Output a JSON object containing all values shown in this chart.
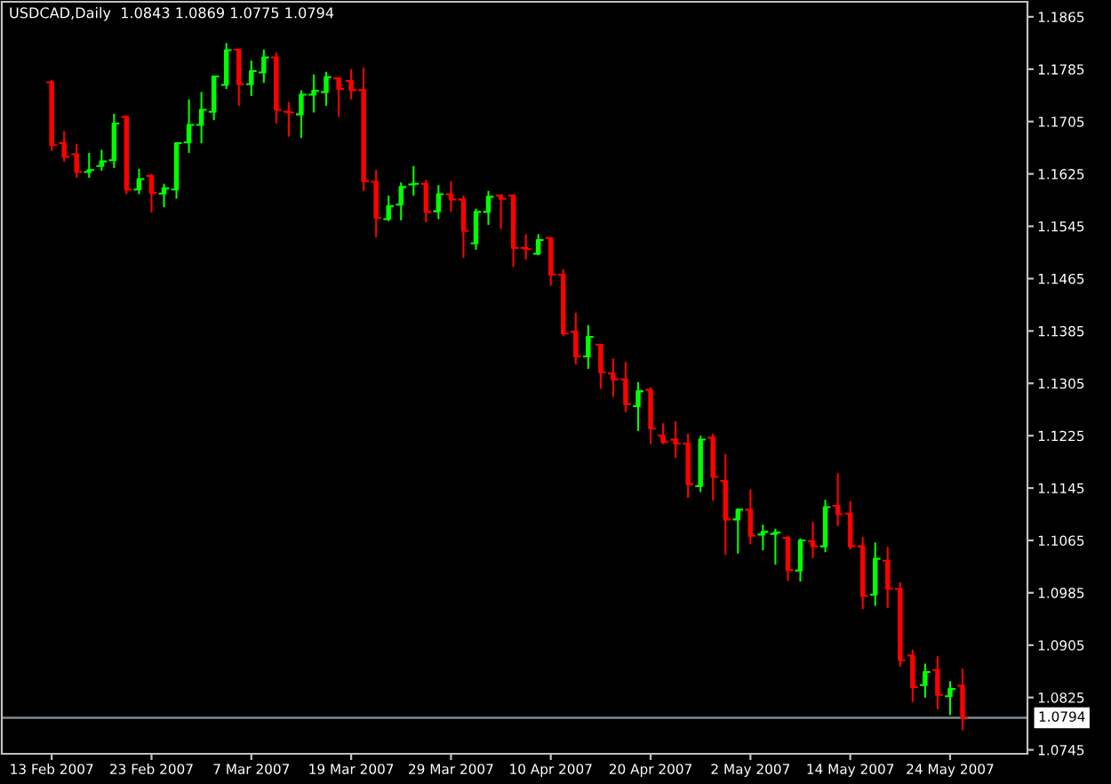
{
  "chart_data": {
    "type": "candlestick",
    "title": "USDCAD,Daily  1.0843 1.0869 1.0775 1.0794",
    "categories": [
      "13 Feb 2007",
      null,
      null,
      null,
      null,
      null,
      null,
      null,
      "23 Feb 2007",
      null,
      null,
      null,
      null,
      null,
      null,
      null,
      "7 Mar 2007",
      null,
      null,
      null,
      null,
      null,
      null,
      null,
      "19 Mar 2007",
      null,
      null,
      null,
      null,
      null,
      null,
      null,
      "29 Mar 2007",
      null,
      null,
      null,
      null,
      null,
      null,
      null,
      "10 Apr 2007",
      null,
      null,
      null,
      null,
      null,
      null,
      null,
      "20 Apr 2007",
      null,
      null,
      null,
      null,
      null,
      null,
      null,
      "2 May 2007",
      null,
      null,
      null,
      null,
      null,
      null,
      null,
      "14 May 2007",
      null,
      null,
      null,
      null,
      null,
      null,
      null,
      "24 May 2007",
      null
    ],
    "ohlc": [
      [
        1.1765,
        1.1768,
        1.166,
        1.1669
      ],
      [
        1.1672,
        1.169,
        1.1644,
        1.1651
      ],
      [
        1.1655,
        1.1671,
        1.1619,
        1.1628
      ],
      [
        1.1628,
        1.1657,
        1.1619,
        1.1631
      ],
      [
        1.1637,
        1.1662,
        1.163,
        1.1644
      ],
      [
        1.1646,
        1.1717,
        1.1634,
        1.1702
      ],
      [
        1.1712,
        1.1714,
        1.1594,
        1.1601
      ],
      [
        1.1601,
        1.1633,
        1.1594,
        1.1617
      ],
      [
        1.1622,
        1.1625,
        1.1566,
        1.1596
      ],
      [
        1.1595,
        1.161,
        1.1574,
        1.1603
      ],
      [
        1.1601,
        1.1673,
        1.1587,
        1.1672
      ],
      [
        1.1673,
        1.1739,
        1.1657,
        1.17
      ],
      [
        1.17,
        1.175,
        1.1672,
        1.1723
      ],
      [
        1.172,
        1.1775,
        1.1707,
        1.1774
      ],
      [
        1.1761,
        1.1825,
        1.1755,
        1.1814
      ],
      [
        1.1815,
        1.1816,
        1.1729,
        1.1762
      ],
      [
        1.1762,
        1.1798,
        1.1744,
        1.1782
      ],
      [
        1.178,
        1.1815,
        1.1764,
        1.1803
      ],
      [
        1.1803,
        1.1811,
        1.1702,
        1.1723
      ],
      [
        1.172,
        1.1735,
        1.1682,
        1.1719
      ],
      [
        1.1716,
        1.1753,
        1.168,
        1.1746
      ],
      [
        1.1746,
        1.1777,
        1.1719,
        1.1752
      ],
      [
        1.175,
        1.1781,
        1.1729,
        1.1773
      ],
      [
        1.1771,
        1.1771,
        1.1712,
        1.1755
      ],
      [
        1.1767,
        1.1785,
        1.1739,
        1.1753
      ],
      [
        1.1753,
        1.1788,
        1.1599,
        1.1614
      ],
      [
        1.1613,
        1.1631,
        1.1528,
        1.1558
      ],
      [
        1.1556,
        1.1592,
        1.1553,
        1.1576
      ],
      [
        1.1578,
        1.1612,
        1.1554,
        1.1605
      ],
      [
        1.1609,
        1.1637,
        1.1592,
        1.161
      ],
      [
        1.161,
        1.1616,
        1.1551,
        1.1567
      ],
      [
        1.1568,
        1.1608,
        1.1556,
        1.1594
      ],
      [
        1.1594,
        1.1614,
        1.1567,
        1.1586
      ],
      [
        1.1586,
        1.1592,
        1.1497,
        1.1538
      ],
      [
        1.1519,
        1.1572,
        1.1509,
        1.1567
      ],
      [
        1.1567,
        1.1599,
        1.1547,
        1.159
      ],
      [
        1.1592,
        1.1594,
        1.1541,
        1.1587
      ],
      [
        1.1592,
        1.1594,
        1.1483,
        1.1512
      ],
      [
        1.1512,
        1.1533,
        1.1494,
        1.151
      ],
      [
        1.1503,
        1.1533,
        1.1501,
        1.1524
      ],
      [
        1.1527,
        1.1528,
        1.1454,
        1.1471
      ],
      [
        1.1471,
        1.1479,
        1.1377,
        1.1381
      ],
      [
        1.1384,
        1.1413,
        1.1334,
        1.1346
      ],
      [
        1.1346,
        1.1394,
        1.1327,
        1.1376
      ],
      [
        1.1364,
        1.1365,
        1.1297,
        1.1322
      ],
      [
        1.132,
        1.1343,
        1.1284,
        1.1311
      ],
      [
        1.1311,
        1.1338,
        1.1261,
        1.1273
      ],
      [
        1.127,
        1.1307,
        1.1232,
        1.1293
      ],
      [
        1.1295,
        1.1299,
        1.1212,
        1.1236
      ],
      [
        1.1225,
        1.1244,
        1.1212,
        1.1215
      ],
      [
        1.1219,
        1.1247,
        1.1191,
        1.1213
      ],
      [
        1.1213,
        1.1228,
        1.113,
        1.1151
      ],
      [
        1.1148,
        1.1225,
        1.1139,
        1.1219
      ],
      [
        1.1222,
        1.1228,
        1.1126,
        1.1162
      ],
      [
        1.1156,
        1.1197,
        1.1043,
        1.1097
      ],
      [
        1.1097,
        1.1114,
        1.1045,
        1.1112
      ],
      [
        1.1112,
        1.1143,
        1.1059,
        1.1072
      ],
      [
        1.1074,
        1.1089,
        1.105,
        1.1078
      ],
      [
        1.1075,
        1.1083,
        1.1028,
        1.1077
      ],
      [
        1.1069,
        1.1072,
        1.1003,
        1.102
      ],
      [
        1.1019,
        1.1068,
        1.1002,
        1.1065
      ],
      [
        1.1064,
        1.1093,
        1.1038,
        1.1056
      ],
      [
        1.1056,
        1.1127,
        1.1047,
        1.1116
      ],
      [
        1.1118,
        1.1168,
        1.1087,
        1.1105
      ],
      [
        1.1106,
        1.1125,
        1.1051,
        1.1056
      ],
      [
        1.1056,
        1.107,
        1.096,
        1.098
      ],
      [
        1.0982,
        1.1062,
        1.0965,
        1.1037
      ],
      [
        1.1034,
        1.1055,
        1.0962,
        1.0991
      ],
      [
        1.0991,
        1.1001,
        1.0872,
        1.0882
      ],
      [
        1.0889,
        1.0898,
        1.0818,
        1.0841
      ],
      [
        1.0844,
        1.0877,
        1.0825,
        1.0864
      ],
      [
        1.0867,
        1.0888,
        1.0807,
        1.0829
      ],
      [
        1.0827,
        1.085,
        1.0798,
        1.0838
      ],
      [
        1.0843,
        1.0869,
        1.0775,
        1.0794
      ]
    ],
    "colors": [
      "#ff0000",
      "#ff0000",
      "#ff0000",
      "#00ff00",
      "#00ff00",
      "#00ff00",
      "#ff0000",
      "#00ff00",
      "#ff0000",
      "#00ff00",
      "#00ff00",
      "#00ff00",
      "#00ff00",
      "#00ff00",
      "#00ff00",
      "#ff0000",
      "#00ff00",
      "#00ff00",
      "#ff0000",
      "#ff0000",
      "#00ff00",
      "#00ff00",
      "#00ff00",
      "#ff0000",
      "#ff0000",
      "#ff0000",
      "#ff0000",
      "#00ff00",
      "#00ff00",
      "#00ff00",
      "#ff0000",
      "#00ff00",
      "#ff0000",
      "#ff0000",
      "#00ff00",
      "#00ff00",
      "#ff0000",
      "#ff0000",
      "#ff0000",
      "#00ff00",
      "#ff0000",
      "#ff0000",
      "#ff0000",
      "#00ff00",
      "#ff0000",
      "#ff0000",
      "#ff0000",
      "#00ff00",
      "#ff0000",
      "#ff0000",
      "#ff0000",
      "#ff0000",
      "#00ff00",
      "#ff0000",
      "#ff0000",
      "#00ff00",
      "#ff0000",
      "#00ff00",
      "#00ff00",
      "#ff0000",
      "#00ff00",
      "#ff0000",
      "#00ff00",
      "#ff0000",
      "#ff0000",
      "#ff0000",
      "#00ff00",
      "#ff0000",
      "#ff0000",
      "#ff0000",
      "#00ff00",
      "#ff0000",
      "#00ff00",
      "#ff0000"
    ],
    "ylim": [
      1.0739,
      1.1888
    ],
    "yticks": [
      1.0745,
      1.0825,
      1.0905,
      1.0985,
      1.1065,
      1.1145,
      1.1225,
      1.1305,
      1.1385,
      1.1465,
      1.1545,
      1.1625,
      1.1705,
      1.1785,
      1.1865
    ],
    "ref_lines": [
      {
        "axis": "y",
        "value": 1.0794,
        "label": "1.0794",
        "color": "#808890"
      }
    ]
  }
}
